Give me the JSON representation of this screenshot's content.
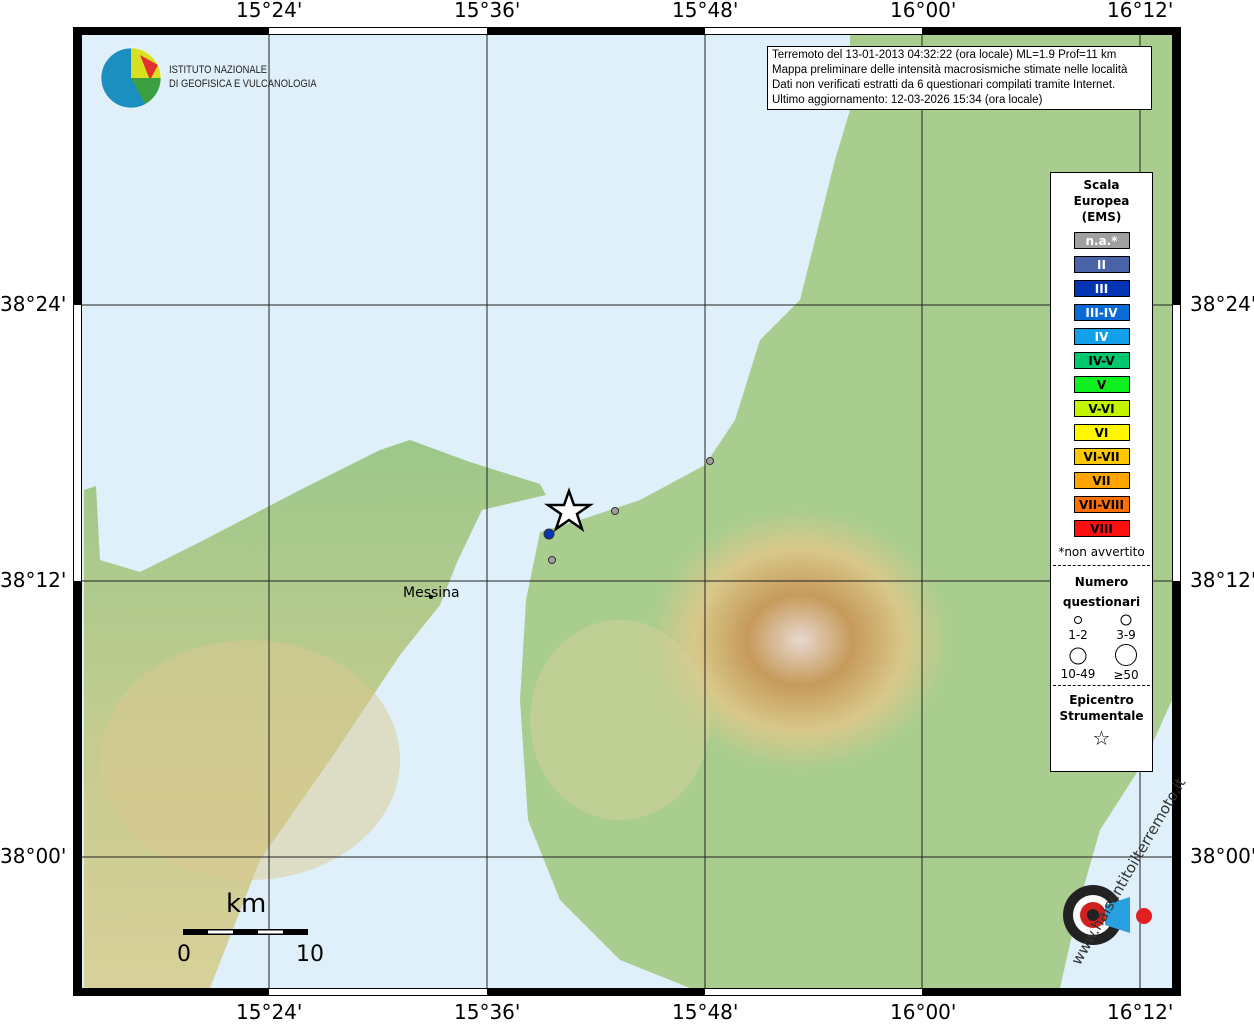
{
  "map": {
    "lon_ticks": [
      "15°24'",
      "15°36'",
      "15°48'",
      "16°00'",
      "16°12'"
    ],
    "lat_ticks": [
      "38°24'",
      "38°12'",
      "38°00'"
    ],
    "places": [
      {
        "name": "Messina"
      }
    ],
    "epicenter_icon": "star-icon"
  },
  "logo": {
    "line1": "ISTITUTO NAZIONALE",
    "line2": "DI GEOFISICA E VULCANOLOGIA"
  },
  "info": {
    "line1": "Terremoto del 13-01-2013 04:32:22 (ora locale) ML=1.9 Prof=11 km",
    "line2": "Mappa preliminare delle intensità macrosismiche stimate nelle località",
    "line3": "Dati non verificati estratti da 6 questionari compilati tramite Internet.",
    "line4": "Ultimo aggiornamento: 12-03-2026 15:34 (ora locale)"
  },
  "legend": {
    "title": [
      "Scala",
      "Europea",
      "(EMS)"
    ],
    "classes": [
      {
        "label": "n.a.*",
        "color": "#a0a0a0",
        "text": "#fff"
      },
      {
        "label": "II",
        "color": "#4a63a8",
        "text": "#fff"
      },
      {
        "label": "III",
        "color": "#0535b5",
        "text": "#fff"
      },
      {
        "label": "III-IV",
        "color": "#0a6ad6",
        "text": "#fff"
      },
      {
        "label": "IV",
        "color": "#13a0ea",
        "text": "#fff"
      },
      {
        "label": "IV-V",
        "color": "#00c86e",
        "text": "#000"
      },
      {
        "label": "V",
        "color": "#10f020",
        "text": "#000"
      },
      {
        "label": "V-VI",
        "color": "#c4f500",
        "text": "#000"
      },
      {
        "label": "VI",
        "color": "#fff600",
        "text": "#000"
      },
      {
        "label": "VI-VII",
        "color": "#ffc800",
        "text": "#000"
      },
      {
        "label": "VII",
        "color": "#ffa500",
        "text": "#000"
      },
      {
        "label": "VII-VIII",
        "color": "#ff7000",
        "text": "#000"
      },
      {
        "label": "VIII",
        "color": "#ff1010",
        "text": "#000"
      }
    ],
    "note": "*non avvertito",
    "count_title": [
      "Numero",
      "questionari"
    ],
    "counts": [
      "1-2",
      "3-9",
      "10-49",
      "≥50"
    ],
    "epi_title": [
      "Epicentro",
      "Strumentale"
    ]
  },
  "scalebar": {
    "unit": "km",
    "min": "0",
    "max": "10"
  },
  "watermark": "www.haisentitoilterremoto.it"
}
